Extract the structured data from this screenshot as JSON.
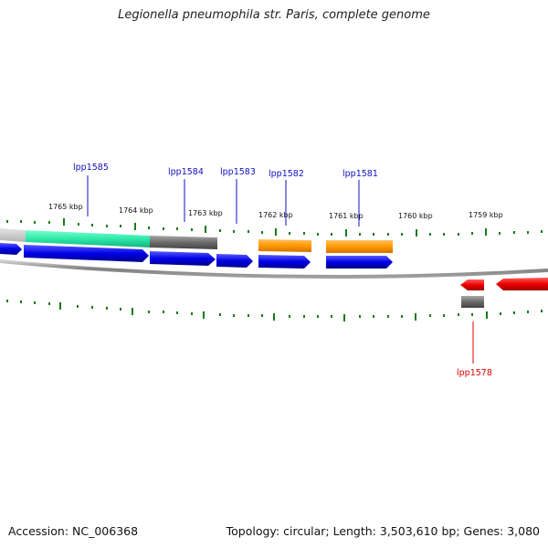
{
  "title": "Legionella pneumophila str. Paris, complete genome",
  "footer": {
    "accession": "Accession: NC_006368",
    "topology": "Topology: circular; Length: 3,503,610 bp; Genes: 3,080"
  },
  "colors": {
    "tick": "#1a7a1a",
    "blue": "#1010ee",
    "teal": "#2ee8a8",
    "gray": "#777777",
    "orange": "#ff9900",
    "red": "#ee0000",
    "label_blue": "#1010c0",
    "label_red": "#e00000"
  },
  "scale_labels": [
    "1765 kbp",
    "1764 kbp",
    "1763 kbp",
    "1762 kbp",
    "1761 kbp",
    "1760 kbp",
    "1759 kbp"
  ],
  "gene_labels": [
    {
      "text": "lpp1585",
      "color": "blue"
    },
    {
      "text": "lpp1584",
      "color": "blue"
    },
    {
      "text": "lpp1583",
      "color": "blue"
    },
    {
      "text": "lpp1582",
      "color": "blue"
    },
    {
      "text": "lpp1581",
      "color": "blue"
    },
    {
      "text": "lpp1578",
      "color": "red"
    }
  ]
}
